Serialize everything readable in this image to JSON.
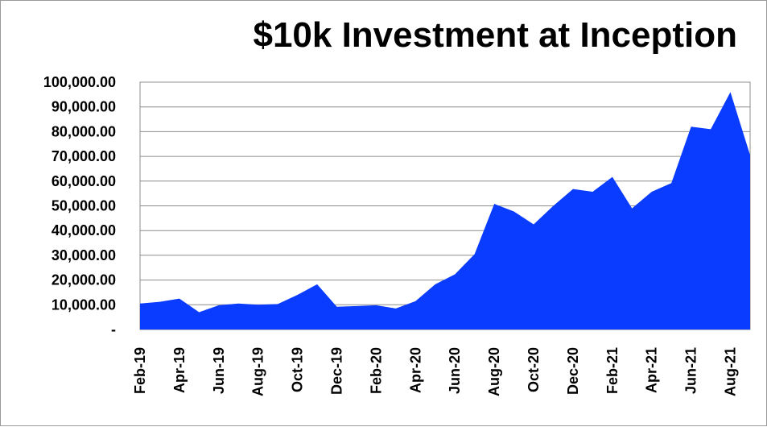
{
  "chart_data": {
    "type": "area",
    "title": "$10k Investment at Inception",
    "xlabel": "",
    "ylabel": "",
    "ylim": [
      0,
      100000
    ],
    "grid": true,
    "legend": "none",
    "fill_color": "#0a3cff",
    "y_tick_labels": [
      "-",
      "10,000.00",
      "20,000.00",
      "30,000.00",
      "40,000.00",
      "50,000.00",
      "60,000.00",
      "70,000.00",
      "80,000.00",
      "90,000.00",
      "100,000.00"
    ],
    "x_tick_labels": [
      "Feb-19",
      "Apr-19",
      "Jun-19",
      "Aug-19",
      "Oct-19",
      "Dec-19",
      "Feb-20",
      "Apr-20",
      "Jun-20",
      "Aug-20",
      "Oct-20",
      "Dec-20",
      "Feb-21",
      "Apr-21",
      "Jun-21",
      "Aug-21"
    ],
    "x": [
      "Feb-19",
      "Mar-19",
      "Apr-19",
      "May-19",
      "Jun-19",
      "Jul-19",
      "Aug-19",
      "Sep-19",
      "Oct-19",
      "Nov-19",
      "Dec-19",
      "Jan-20",
      "Feb-20",
      "Mar-20",
      "Apr-20",
      "May-20",
      "Jun-20",
      "Jul-20",
      "Aug-20",
      "Sep-20",
      "Oct-20",
      "Nov-20",
      "Dec-20",
      "Jan-21",
      "Feb-21",
      "Mar-21",
      "Apr-21",
      "May-21",
      "Jun-21",
      "Jul-21",
      "Aug-21",
      "Sep-21"
    ],
    "values": [
      10500,
      11200,
      12500,
      7000,
      9800,
      10500,
      10000,
      10300,
      14000,
      18300,
      9200,
      9500,
      9800,
      8500,
      11500,
      18300,
      22300,
      30500,
      50800,
      47700,
      42500,
      50000,
      56800,
      55700,
      61700,
      49000,
      55700,
      59200,
      82000,
      81000,
      96000,
      70500
    ]
  }
}
